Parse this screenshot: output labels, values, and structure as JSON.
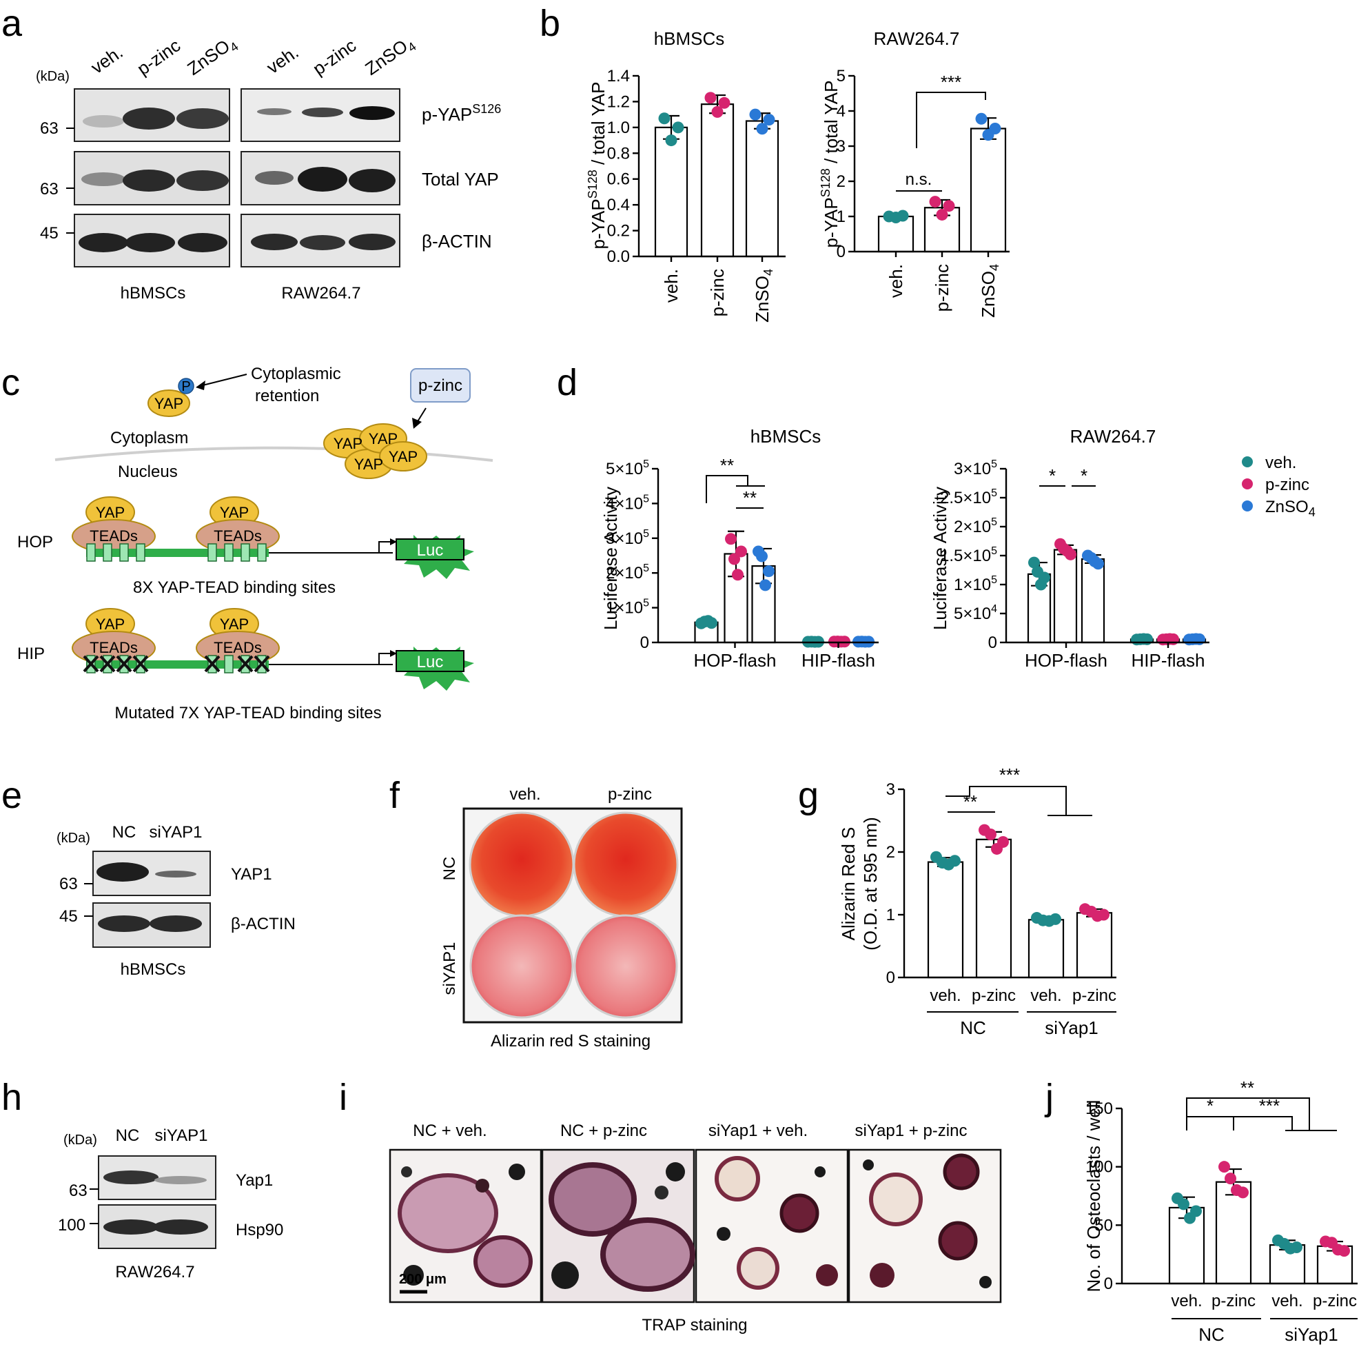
{
  "colors": {
    "veh": "#1f8a8a",
    "pzinc": "#d6246e",
    "znso4": "#2a79d6"
  },
  "icons": [
    "phosphate-circle-icon",
    "luciferase-starburst-icon",
    "promoter-arrow-icon"
  ],
  "panels": {
    "a": {
      "label": "a",
      "kda_label": "(kDa)",
      "lanes": [
        "veh.",
        "p-zinc",
        "ZnSO",
        "veh.",
        "p-zinc",
        "ZnSO"
      ],
      "lane_sub": "4",
      "mw": [
        "63",
        "63",
        "45"
      ],
      "bands": [
        "p-YAP",
        "Total YAP",
        "β-ACTIN"
      ],
      "band_sup": "S126",
      "cells": [
        "hBMSCs",
        "RAW264.7"
      ]
    },
    "b": {
      "label": "b"
    },
    "c": {
      "label": "c",
      "p": "P",
      "yap": "YAP",
      "retention": [
        "Cytoplasmic",
        "retention"
      ],
      "pzinc": "p-zinc",
      "cytoplasm": "Cytoplasm",
      "nucleus": "Nucleus",
      "teads": "TEADs",
      "hop": "HOP",
      "hip": "HIP",
      "luc": "Luc",
      "hop_caption": "8X YAP-TEAD binding sites",
      "hip_caption": "Mutated 7X YAP-TEAD binding sites"
    },
    "d": {
      "label": "d",
      "legend": [
        "veh.",
        "p-zinc",
        "ZnSO"
      ],
      "legend_sub": "4"
    },
    "e": {
      "label": "e",
      "kda_label": "(kDa)",
      "lanes": [
        "NC",
        "siYAP1"
      ],
      "mw": [
        "63",
        "45"
      ],
      "bands": [
        "YAP1",
        "β-ACTIN"
      ],
      "cell": "hBMSCs"
    },
    "f": {
      "label": "f",
      "cols": [
        "veh.",
        "p-zinc"
      ],
      "rows": [
        "NC",
        "siYAP1"
      ],
      "caption": "Alizarin red S staining"
    },
    "g": {
      "label": "g"
    },
    "h": {
      "label": "h",
      "kda_label": "(kDa)",
      "lanes": [
        "NC",
        "siYAP1"
      ],
      "mw": [
        "63",
        "100"
      ],
      "bands": [
        "Yap1",
        "Hsp90"
      ],
      "cell": "RAW264.7"
    },
    "i": {
      "label": "i",
      "titles": [
        "NC + veh.",
        "NC + p-zinc",
        "siYap1 + veh.",
        "siYap1 + p-zinc"
      ],
      "scalebar": "200 μm",
      "caption": "TRAP staining"
    },
    "j": {
      "label": "j"
    }
  },
  "chart_data": [
    {
      "id": "b1",
      "type": "bar",
      "title": "hBMSCs",
      "ylabel": "p-YAP / total YAP",
      "ylabel_sup": "S128",
      "categories": [
        "veh.",
        "p-zinc",
        "ZnSO4"
      ],
      "values": [
        1.0,
        1.18,
        1.05
      ],
      "sd": [
        0.09,
        0.07,
        0.06
      ],
      "points": [
        [
          1.07,
          0.9,
          1.0
        ],
        [
          1.23,
          1.12,
          1.19
        ],
        [
          1.1,
          0.99,
          1.06
        ]
      ],
      "ylim": [
        0,
        1.4
      ],
      "yticks": [
        "0.0",
        "0.2",
        "0.4",
        "0.6",
        "0.8",
        "1.0",
        "1.2",
        "1.4"
      ]
    },
    {
      "id": "b2",
      "type": "bar",
      "title": "RAW264.7",
      "ylabel": "p-YAP / total YAP",
      "ylabel_sup": "S128",
      "categories": [
        "veh.",
        "p-zinc",
        "ZnSO4"
      ],
      "values": [
        1.0,
        1.25,
        3.5
      ],
      "sd": [
        0.06,
        0.22,
        0.3
      ],
      "points": [
        [
          1.0,
          0.97,
          1.02
        ],
        [
          1.42,
          1.05,
          1.3
        ],
        [
          3.78,
          3.32,
          3.5
        ]
      ],
      "ylim": [
        0,
        5
      ],
      "yticks": [
        "0",
        "1",
        "2",
        "3",
        "4",
        "5"
      ],
      "annotations": [
        "n.s.",
        "***"
      ]
    },
    {
      "id": "d1",
      "type": "bar",
      "title": "hBMSCs",
      "ylabel": "Luciferase Activity",
      "categories": [
        "HOP-flash",
        "HIP-flash"
      ],
      "series": [
        {
          "name": "veh.",
          "values": [
            58000,
            2000
          ],
          "sd": [
            4000,
            500
          ]
        },
        {
          "name": "p-zinc",
          "values": [
            255000,
            2500
          ],
          "sd": [
            65000,
            600
          ]
        },
        {
          "name": "ZnSO4",
          "values": [
            220000,
            2200
          ],
          "sd": [
            50000,
            500
          ]
        }
      ],
      "points": [
        [
          [
            55000,
            60000,
            62000,
            56000
          ],
          [
            2000,
            2200,
            1800,
            2000
          ]
        ],
        [
          [
            298000,
            240000,
            195000,
            262000
          ],
          [
            2500,
            2700,
            2300,
            2500
          ]
        ],
        [
          [
            262000,
            248000,
            165000,
            205000
          ],
          [
            2200,
            2400,
            2000,
            2200
          ]
        ]
      ],
      "ylim": [
        0,
        500000
      ],
      "yticks": [
        "0",
        "1×10^5",
        "2×10^5",
        "3×10^5",
        "4×10^5",
        "5×10^5"
      ],
      "annotations": [
        "**",
        "**"
      ]
    },
    {
      "id": "d2",
      "type": "bar",
      "title": "RAW264.7",
      "ylabel": "Luciferase Activity",
      "categories": [
        "HOP-flash",
        "HIP-flash"
      ],
      "series": [
        {
          "name": "veh.",
          "values": [
            118000,
            5500
          ],
          "sd": [
            20000,
            800
          ]
        },
        {
          "name": "p-zinc",
          "values": [
            160000,
            5500
          ],
          "sd": [
            8000,
            800
          ]
        },
        {
          "name": "ZnSO4",
          "values": [
            144000,
            5500
          ],
          "sd": [
            7000,
            800
          ]
        }
      ],
      "points": [
        [
          [
            138000,
            122000,
            100000,
            112000
          ],
          [
            5000,
            5500,
            6000,
            5500
          ]
        ],
        [
          [
            170000,
            162000,
            158000,
            152000
          ],
          [
            5000,
            5500,
            6000,
            5500
          ]
        ],
        [
          [
            150000,
            146000,
            140000,
            136000
          ],
          [
            5000,
            5500,
            6000,
            5500
          ]
        ]
      ],
      "ylim": [
        0,
        300000
      ],
      "yticks": [
        "0",
        "5×10^4",
        "1×10^5",
        "1.5×10^5",
        "2×10^5",
        "2.5×10^5",
        "3×10^5"
      ],
      "annotations": [
        "*",
        "*"
      ]
    },
    {
      "id": "g",
      "type": "bar",
      "ylabel": [
        "Alizarin Red S",
        "(O.D. at 595 nm)"
      ],
      "categories": [
        "veh.",
        "p-zinc",
        "veh.",
        "p-zinc"
      ],
      "groups": [
        "NC",
        "siYap1"
      ],
      "values": [
        1.84,
        2.2,
        0.92,
        1.03
      ],
      "sd": [
        0.07,
        0.12,
        0.03,
        0.06
      ],
      "points": [
        [
          1.92,
          1.83,
          1.8,
          1.86
        ],
        [
          2.35,
          2.28,
          2.05,
          2.16
        ],
        [
          0.95,
          0.91,
          0.9,
          0.93
        ],
        [
          1.09,
          1.05,
          0.98,
          1.0
        ]
      ],
      "ylim": [
        0,
        3
      ],
      "yticks": [
        "0",
        "1",
        "2",
        "3"
      ],
      "annotations": [
        "**",
        "***"
      ]
    },
    {
      "id": "j",
      "type": "bar",
      "ylabel": "No. of Osteoclasts / well",
      "categories": [
        "veh.",
        "p-zinc",
        "veh.",
        "p-zinc"
      ],
      "groups": [
        "NC",
        "siYap1"
      ],
      "values": [
        65,
        87,
        33,
        32
      ],
      "sd": [
        9,
        11,
        4,
        4
      ],
      "points": [
        [
          73,
          68,
          56,
          62
        ],
        [
          100,
          90,
          80,
          78
        ],
        [
          37,
          34,
          30,
          31
        ],
        [
          36,
          35,
          29,
          28
        ]
      ],
      "ylim": [
        0,
        150
      ],
      "yticks": [
        "0",
        "50",
        "100",
        "150"
      ],
      "annotations": [
        "*",
        "***",
        "**"
      ]
    }
  ]
}
